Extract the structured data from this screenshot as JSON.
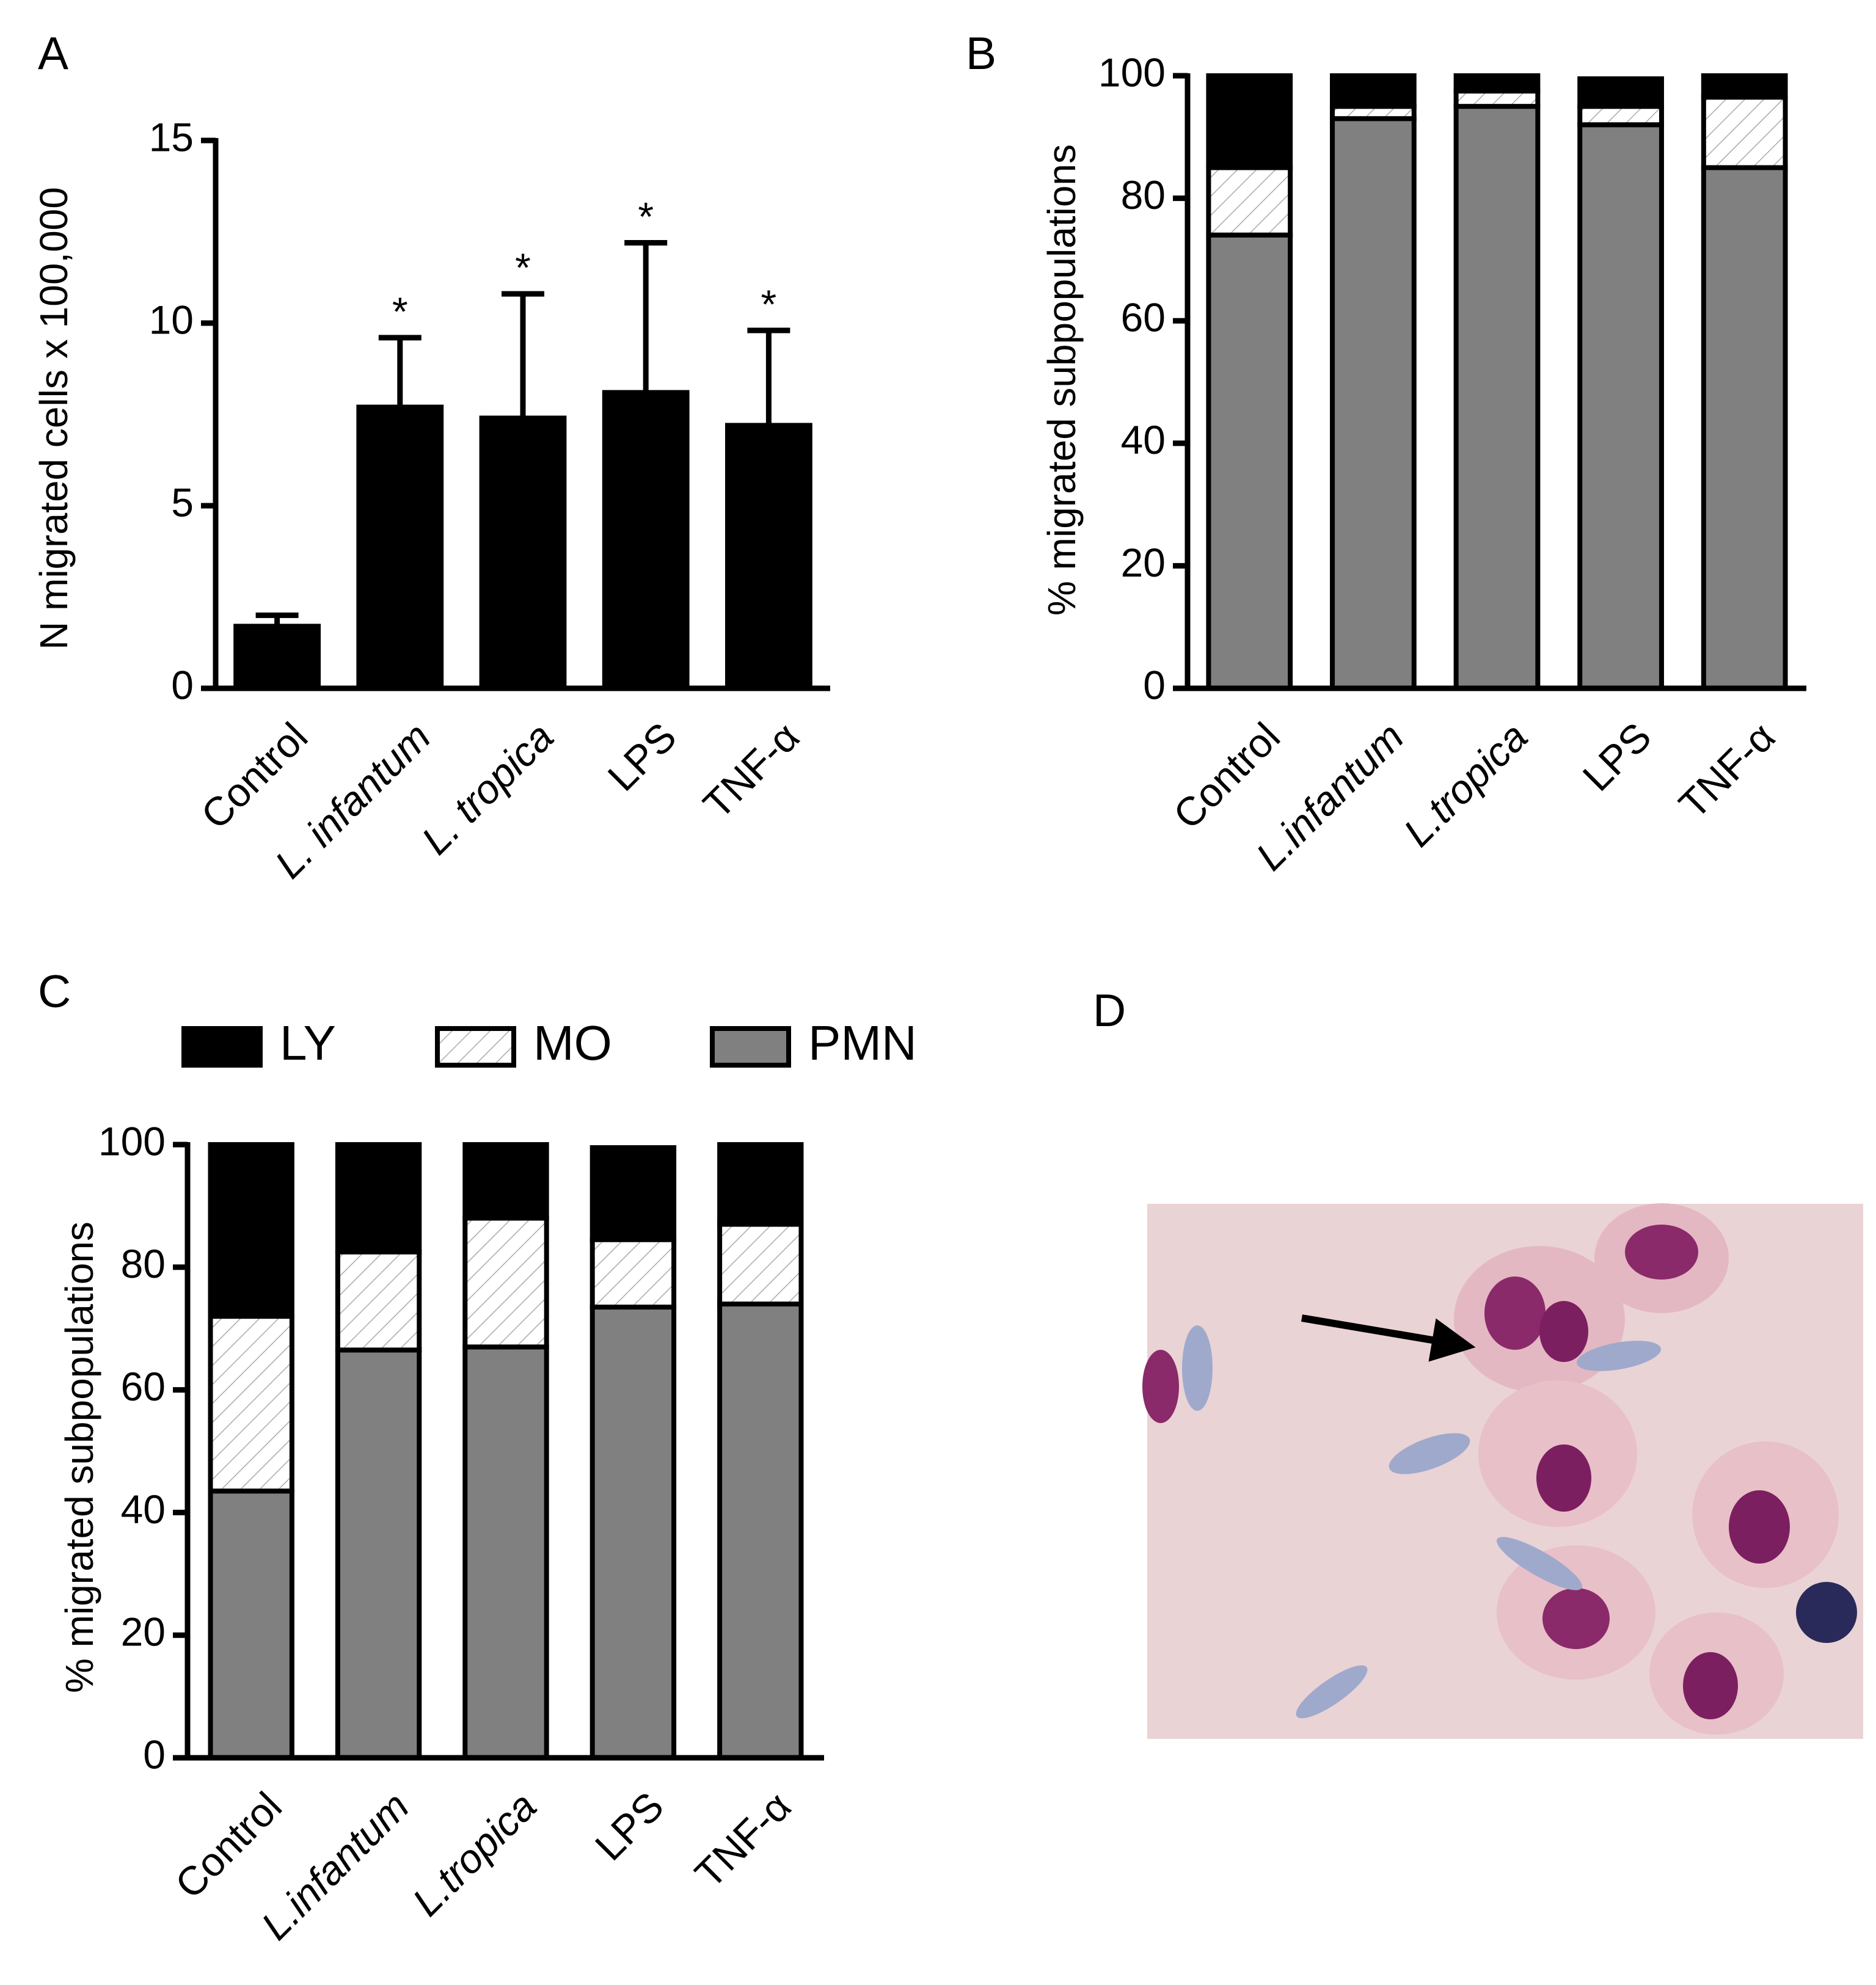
{
  "chart_data": [
    {
      "type": "bar",
      "label": "A",
      "ylabel": "N migrated cells x 100,000",
      "categories": [
        "Control",
        "L. infantum",
        "L. tropica",
        "LPS",
        "TNF-α"
      ],
      "values": [
        1.7,
        7.7,
        7.4,
        8.1,
        7.2
      ],
      "errors": [
        0.3,
        1.9,
        3.4,
        4.1,
        2.6
      ],
      "annotations": [
        null,
        "*",
        "*",
        "*",
        "*"
      ],
      "color": "#000000",
      "ylim": [
        0,
        15
      ],
      "yticks": [
        0,
        5,
        10,
        15
      ]
    },
    {
      "type": "stacked_bar",
      "label": "B",
      "ylabel": "% migrated subpopulations",
      "categories": [
        "Control",
        "L.infantum",
        "L.tropica",
        "LPS",
        "TNF-α"
      ],
      "series": [
        {
          "color": "#000000",
          "values": [
            15,
            5,
            2.5,
            4.5,
            3.5
          ]
        },
        {
          "color": "#ffffff",
          "pattern": "hatch",
          "values": [
            11,
            2,
            2.5,
            3,
            11.5
          ]
        },
        {
          "color": "#808080",
          "values": [
            74,
            93,
            95,
            92,
            85
          ]
        }
      ],
      "ylim": [
        0,
        100
      ],
      "yticks": [
        0,
        20,
        40,
        60,
        80,
        100
      ]
    },
    {
      "type": "stacked_bar",
      "label": "C",
      "ylabel": "% migrated subpopulations",
      "legend": "top",
      "categories": [
        "Control",
        "L.infantum",
        "L.tropica",
        "LPS",
        "TNF-α"
      ],
      "series": [
        {
          "name": "LY",
          "color": "#000000",
          "values": [
            28,
            17.5,
            12,
            15,
            13
          ]
        },
        {
          "name": "MO",
          "color": "#ffffff",
          "pattern": "hatch",
          "values": [
            28.5,
            16,
            21,
            11,
            13
          ]
        },
        {
          "name": "PMN",
          "color": "#808080",
          "values": [
            43.5,
            66.5,
            67,
            73.5,
            74
          ]
        }
      ],
      "ylim": [
        0,
        100
      ],
      "yticks": [
        0,
        20,
        40,
        60,
        80,
        100
      ]
    }
  ],
  "image_panel": {
    "label": "D"
  }
}
